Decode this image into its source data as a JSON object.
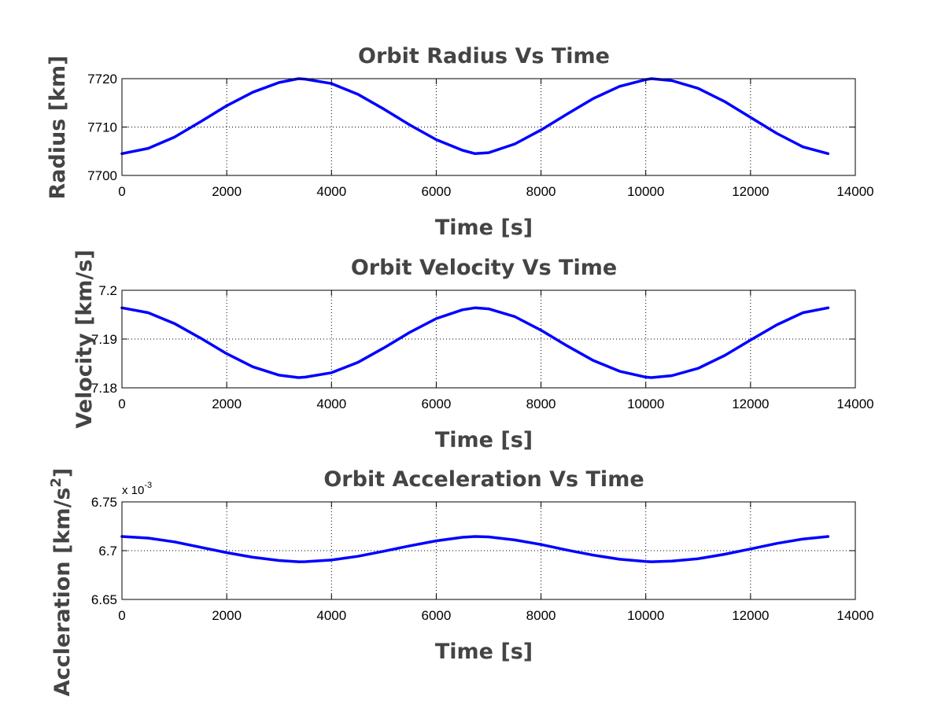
{
  "chart_data": [
    {
      "type": "line",
      "title": "Orbit Radius Vs Time",
      "xlabel": "Time [s]",
      "ylabel": "Radius [km]",
      "xlim": [
        0,
        14000
      ],
      "ylim": [
        7700,
        7720
      ],
      "xticks": [
        "0",
        "2000",
        "4000",
        "6000",
        "8000",
        "10000",
        "12000",
        "14000"
      ],
      "yticks": [
        "7700",
        "7710",
        "7720"
      ],
      "grid": true,
      "series": [
        {
          "color": "#0000ff",
          "x": [
            0,
            500,
            1000,
            1500,
            2000,
            2500,
            3000,
            3370,
            3500,
            4000,
            4500,
            5000,
            5500,
            6000,
            6500,
            6740,
            7000,
            7500,
            8000,
            8500,
            9000,
            9500,
            10000,
            10110,
            10500,
            11000,
            11500,
            12000,
            12500,
            13000,
            13480
          ],
          "y": [
            7704.5,
            7705.6,
            7707.9,
            7711.1,
            7714.4,
            7717.2,
            7719.2,
            7720.0,
            7719.9,
            7719.0,
            7716.8,
            7713.7,
            7710.4,
            7707.4,
            7705.2,
            7704.5,
            7704.7,
            7706.5,
            7709.4,
            7712.7,
            7715.9,
            7718.4,
            7719.8,
            7720.0,
            7719.6,
            7718.0,
            7715.3,
            7712.0,
            7708.7,
            7705.9,
            7704.5
          ]
        }
      ]
    },
    {
      "type": "line",
      "title": "Orbit Velocity Vs Time",
      "xlabel": "Time [s]",
      "ylabel": "Velocity [km/s]",
      "xlim": [
        0,
        14000
      ],
      "ylim": [
        7.18,
        7.2
      ],
      "xticks": [
        "0",
        "2000",
        "4000",
        "6000",
        "8000",
        "10000",
        "12000",
        "14000"
      ],
      "yticks": [
        "7.18",
        "7.19",
        "7.2"
      ],
      "grid": true,
      "series": [
        {
          "color": "#0000ff",
          "x": [
            0,
            500,
            1000,
            1500,
            2000,
            2500,
            3000,
            3370,
            3500,
            4000,
            4500,
            5000,
            5500,
            6000,
            6500,
            6740,
            7000,
            7500,
            8000,
            8500,
            9000,
            9500,
            10000,
            10110,
            10500,
            11000,
            11500,
            12000,
            12500,
            13000,
            13480
          ],
          "y": [
            7.1964,
            7.1954,
            7.1932,
            7.1902,
            7.187,
            7.1843,
            7.1826,
            7.1821,
            7.1822,
            7.1831,
            7.1852,
            7.1882,
            7.1914,
            7.1942,
            7.196,
            7.1964,
            7.1962,
            7.1946,
            7.1918,
            7.1886,
            7.1856,
            7.1834,
            7.1822,
            7.1821,
            7.1825,
            7.184,
            7.1866,
            7.1898,
            7.1929,
            7.1954,
            7.1964
          ]
        }
      ]
    },
    {
      "type": "line",
      "title": "Orbit Acceleration Vs Time",
      "xlabel": "Time [s]",
      "ylabel": "Accleration [km/s",
      "ylabel_superscript": "2",
      "ylabel_suffix": "]",
      "multiplier": "x 10",
      "multiplier_exponent": "-3",
      "xlim": [
        0,
        14000
      ],
      "ylim": [
        6.65,
        6.75
      ],
      "xticks": [
        "0",
        "2000",
        "4000",
        "6000",
        "8000",
        "10000",
        "12000",
        "14000"
      ],
      "yticks": [
        "6.65",
        "6.7",
        "6.75"
      ],
      "grid": true,
      "series": [
        {
          "color": "#0000ff",
          "x": [
            0,
            500,
            1000,
            1500,
            2000,
            2500,
            3000,
            3370,
            3500,
            4000,
            4500,
            5000,
            5500,
            6000,
            6500,
            6740,
            7000,
            7500,
            8000,
            8500,
            9000,
            9500,
            10000,
            10110,
            10500,
            11000,
            11500,
            12000,
            12500,
            13000,
            13480
          ],
          "y": [
            6.7145,
            6.7129,
            6.709,
            6.7035,
            6.698,
            6.6932,
            6.6899,
            6.6886,
            6.6887,
            6.6904,
            6.6942,
            6.6994,
            6.705,
            6.7101,
            6.7137,
            6.7145,
            6.7141,
            6.711,
            6.7063,
            6.7006,
            6.6954,
            6.6912,
            6.6889,
            6.6886,
            6.6893,
            6.6918,
            6.6963,
            6.7018,
            6.7074,
            6.7119,
            6.7145
          ]
        }
      ]
    }
  ]
}
